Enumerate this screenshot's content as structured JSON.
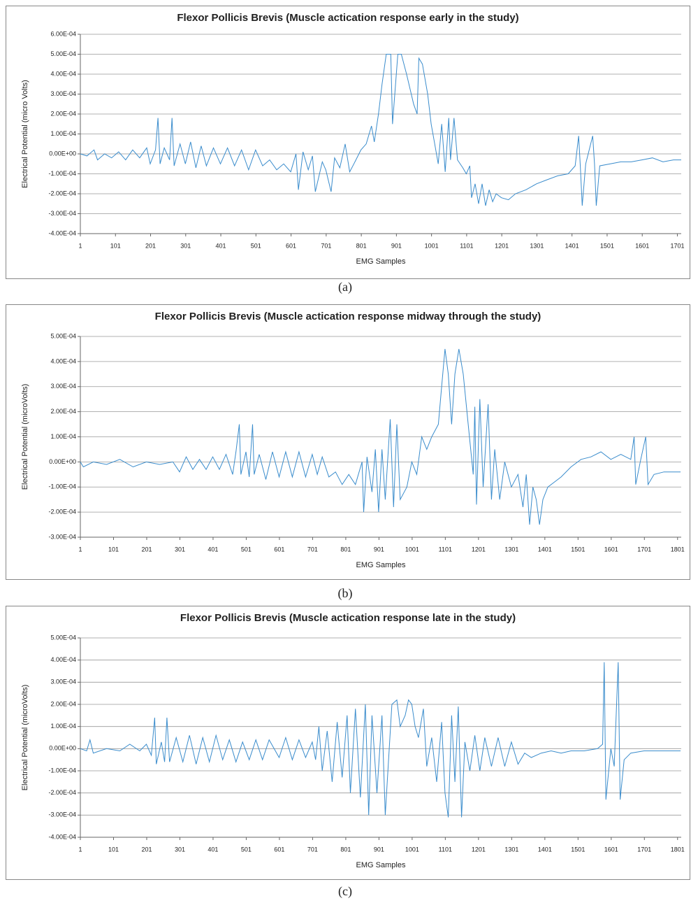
{
  "chart_data": [
    {
      "type": "line",
      "title": "Flexor Pollicis Brevis (Muscle actication response early in the study)",
      "caption": "(a)",
      "xlabel": "EMG Samples",
      "ylabel": "Electrical Potential (micro Volts)",
      "color": "#3a8ccc",
      "grid": true,
      "xlim": [
        1,
        1712
      ],
      "xticks": [
        1,
        101,
        201,
        301,
        401,
        501,
        601,
        701,
        801,
        901,
        1001,
        1101,
        1201,
        1301,
        1401,
        1501,
        1601,
        1701
      ],
      "ylim": [
        -0.0004,
        0.0006
      ],
      "yticks": [
        {
          "value": 0.0006,
          "label": "6.00E-04"
        },
        {
          "value": 0.0005,
          "label": "5.00E-04"
        },
        {
          "value": 0.0004,
          "label": "4.00E-04"
        },
        {
          "value": 0.0003,
          "label": "3.00E-04"
        },
        {
          "value": 0.0002,
          "label": "2.00E-04"
        },
        {
          "value": 0.0001,
          "label": "1.00E-04"
        },
        {
          "value": 0,
          "label": "0.00E+00"
        },
        {
          "value": -0.0001,
          "label": "-1.00E-04"
        },
        {
          "value": -0.0002,
          "label": "-2.00E-04"
        },
        {
          "value": -0.0003,
          "label": "-3.00E-04"
        },
        {
          "value": -0.0004,
          "label": "-4.00E-04"
        }
      ],
      "x": [
        1,
        20,
        40,
        50,
        70,
        90,
        110,
        130,
        150,
        170,
        190,
        200,
        215,
        222,
        228,
        240,
        255,
        262,
        268,
        285,
        300,
        315,
        330,
        345,
        360,
        380,
        400,
        420,
        440,
        460,
        480,
        500,
        520,
        540,
        560,
        580,
        600,
        615,
        622,
        635,
        650,
        662,
        670,
        690,
        700,
        715,
        725,
        740,
        755,
        768,
        780,
        800,
        815,
        830,
        838,
        850,
        860,
        872,
        885,
        890,
        905,
        915,
        930,
        950,
        960,
        965,
        975,
        990,
        1000,
        1010,
        1020,
        1030,
        1040,
        1050,
        1055,
        1065,
        1075,
        1090,
        1100,
        1110,
        1115,
        1125,
        1135,
        1145,
        1155,
        1165,
        1175,
        1185,
        1200,
        1220,
        1240,
        1270,
        1300,
        1330,
        1360,
        1390,
        1410,
        1420,
        1425,
        1430,
        1440,
        1460,
        1465,
        1470,
        1480,
        1510,
        1540,
        1570,
        1600,
        1630,
        1660,
        1690,
        1712
      ],
      "values": [
        0,
        -1e-05,
        2e-05,
        -3e-05,
        0,
        -2e-05,
        1e-05,
        -3e-05,
        2e-05,
        -2e-05,
        3e-05,
        -5e-05,
        2e-05,
        0.00018,
        -5e-05,
        3e-05,
        -3e-05,
        0.00018,
        -6e-05,
        5e-05,
        -5e-05,
        6e-05,
        -7e-05,
        4e-05,
        -6e-05,
        3e-05,
        -5e-05,
        3e-05,
        -6e-05,
        2e-05,
        -8e-05,
        2e-05,
        -6e-05,
        -3e-05,
        -8e-05,
        -5e-05,
        -9e-05,
        0,
        -0.00018,
        1e-05,
        -8e-05,
        -1e-05,
        -0.00019,
        -4e-05,
        -8e-05,
        -0.00019,
        -2e-05,
        -7e-05,
        5e-05,
        -9e-05,
        -5e-05,
        2e-05,
        5e-05,
        0.00014,
        6e-05,
        0.0002,
        0.00035,
        0.0005,
        0.0005,
        0.00015,
        0.0005,
        0.0005,
        0.0004,
        0.00025,
        0.0002,
        0.00048,
        0.00045,
        0.0003,
        0.00015,
        5e-05,
        -5e-05,
        0.00015,
        -9e-05,
        0.00018,
        -3e-05,
        0.00018,
        -3e-05,
        -7e-05,
        -0.0001,
        -6e-05,
        -0.00022,
        -0.00015,
        -0.00025,
        -0.00015,
        -0.00026,
        -0.00018,
        -0.00024,
        -0.0002,
        -0.00022,
        -0.00023,
        -0.0002,
        -0.00018,
        -0.00015,
        -0.00013,
        -0.00011,
        -0.0001,
        -6e-05,
        9e-05,
        -7e-05,
        -0.00026,
        -5e-05,
        9e-05,
        -5e-05,
        -0.00026,
        -6e-05,
        -5e-05,
        -4e-05,
        -4e-05,
        -3e-05,
        -2e-05,
        -4e-05,
        -3e-05,
        -3e-05
      ]
    },
    {
      "type": "line",
      "title": "Flexor Pollicis Brevis (Muscle actication response midway through the study)",
      "caption": "(b)",
      "xlabel": "EMG Samples",
      "ylabel": "Electrical Potential (microVolts)",
      "color": "#3a8ccc",
      "grid": true,
      "xlim": [
        1,
        1812
      ],
      "xticks": [
        1,
        101,
        201,
        301,
        401,
        501,
        601,
        701,
        801,
        901,
        1001,
        1101,
        1201,
        1301,
        1401,
        1501,
        1601,
        1701,
        1801
      ],
      "ylim": [
        -0.0003,
        0.0005
      ],
      "yticks": [
        {
          "value": 0.0005,
          "label": "5.00E-04"
        },
        {
          "value": 0.0004,
          "label": "4.00E-04"
        },
        {
          "value": 0.0003,
          "label": "3.00E-04"
        },
        {
          "value": 0.0002,
          "label": "2.00E-04"
        },
        {
          "value": 0.0001,
          "label": "1.00E-04"
        },
        {
          "value": 0,
          "label": "0.00E+00"
        },
        {
          "value": -0.0001,
          "label": "-1.00E-04"
        },
        {
          "value": -0.0002,
          "label": "-2.00E-04"
        },
        {
          "value": -0.0003,
          "label": "-3.00E-04"
        }
      ],
      "x": [
        1,
        10,
        40,
        80,
        120,
        160,
        200,
        240,
        280,
        300,
        320,
        340,
        360,
        380,
        400,
        420,
        440,
        460,
        470,
        480,
        485,
        500,
        510,
        520,
        525,
        540,
        560,
        580,
        600,
        620,
        640,
        660,
        680,
        700,
        715,
        730,
        750,
        770,
        790,
        810,
        830,
        850,
        855,
        865,
        880,
        890,
        900,
        910,
        920,
        935,
        945,
        955,
        965,
        985,
        1000,
        1015,
        1030,
        1045,
        1060,
        1080,
        1090,
        1100,
        1110,
        1120,
        1130,
        1142,
        1155,
        1170,
        1185,
        1190,
        1195,
        1205,
        1215,
        1230,
        1240,
        1250,
        1265,
        1280,
        1300,
        1320,
        1335,
        1345,
        1355,
        1365,
        1375,
        1385,
        1395,
        1410,
        1430,
        1450,
        1480,
        1510,
        1540,
        1570,
        1600,
        1630,
        1660,
        1670,
        1675,
        1690,
        1705,
        1712,
        1730,
        1760,
        1800,
        1810
      ],
      "values": [
        0,
        -2e-05,
        0,
        -1e-05,
        1e-05,
        -2e-05,
        0,
        -1e-05,
        0,
        -4e-05,
        2e-05,
        -3e-05,
        1e-05,
        -3e-05,
        2e-05,
        -3e-05,
        3e-05,
        -5e-05,
        4e-05,
        0.00015,
        -5e-05,
        4e-05,
        -6e-05,
        0.00015,
        -5e-05,
        3e-05,
        -7e-05,
        4e-05,
        -6e-05,
        4e-05,
        -6e-05,
        4e-05,
        -6e-05,
        3e-05,
        -5e-05,
        2e-05,
        -6e-05,
        -4e-05,
        -9e-05,
        -5e-05,
        -9e-05,
        0,
        -0.0002,
        2e-05,
        -0.00012,
        5e-05,
        -0.0002,
        5e-05,
        -0.00015,
        0.00017,
        -0.00018,
        0.00015,
        -0.00015,
        -0.0001,
        0,
        -5e-05,
        0.0001,
        5e-05,
        0.0001,
        0.00015,
        0.0003,
        0.00045,
        0.00035,
        0.00015,
        0.00035,
        0.00045,
        0.00035,
        0.00015,
        -5e-05,
        0.00022,
        -0.00017,
        0.00025,
        -0.0001,
        0.00023,
        -0.00015,
        5e-05,
        -0.00015,
        0,
        -0.0001,
        -5e-05,
        -0.00018,
        -5e-05,
        -0.00025,
        -0.0001,
        -0.00015,
        -0.00025,
        -0.00015,
        -0.0001,
        -8e-05,
        -6e-05,
        -2e-05,
        1e-05,
        2e-05,
        4e-05,
        1e-05,
        3e-05,
        1e-05,
        0.0001,
        -9e-05,
        1e-05,
        0.0001,
        -9e-05,
        -5e-05,
        -4e-05,
        -4e-05,
        -4e-05
      ]
    },
    {
      "type": "line",
      "title": "Flexor Pollicis Brevis (Muscle actication response late in the study)",
      "caption": "(c)",
      "xlabel": "EMG Samples",
      "ylabel": "Electrical Potential (microVolts)",
      "color": "#3a8ccc",
      "grid": true,
      "xlim": [
        1,
        1812
      ],
      "xticks": [
        1,
        101,
        201,
        301,
        401,
        501,
        601,
        701,
        801,
        901,
        1001,
        1101,
        1201,
        1301,
        1401,
        1501,
        1601,
        1701,
        1801
      ],
      "ylim": [
        -0.0004,
        0.0005
      ],
      "yticks": [
        {
          "value": 0.0005,
          "label": "5.00E-04"
        },
        {
          "value": 0.0004,
          "label": "4.00E-04"
        },
        {
          "value": 0.0003,
          "label": "3.00E-04"
        },
        {
          "value": 0.0002,
          "label": "2.00E-04"
        },
        {
          "value": 0.0001,
          "label": "1.00E-04"
        },
        {
          "value": 0,
          "label": "0.00E+00"
        },
        {
          "value": -0.0001,
          "label": "-1.00E-04"
        },
        {
          "value": -0.0002,
          "label": "-2.00E-04"
        },
        {
          "value": -0.0003,
          "label": "-3.00E-04"
        },
        {
          "value": -0.0004,
          "label": "-4.00E-04"
        }
      ],
      "x": [
        1,
        20,
        30,
        40,
        80,
        120,
        150,
        180,
        200,
        215,
        225,
        230,
        245,
        255,
        262,
        270,
        290,
        310,
        330,
        350,
        370,
        390,
        410,
        430,
        450,
        470,
        490,
        510,
        530,
        550,
        570,
        600,
        620,
        640,
        660,
        680,
        700,
        710,
        720,
        730,
        745,
        760,
        775,
        790,
        805,
        815,
        830,
        845,
        860,
        870,
        880,
        895,
        910,
        920,
        940,
        955,
        965,
        980,
        990,
        1000,
        1010,
        1020,
        1035,
        1045,
        1060,
        1075,
        1090,
        1100,
        1110,
        1120,
        1130,
        1140,
        1150,
        1160,
        1175,
        1190,
        1205,
        1220,
        1240,
        1260,
        1280,
        1300,
        1320,
        1340,
        1360,
        1390,
        1420,
        1450,
        1480,
        1520,
        1560,
        1575,
        1580,
        1585,
        1600,
        1610,
        1622,
        1628,
        1640,
        1660,
        1700,
        1750,
        1810
      ],
      "values": [
        0,
        -1e-05,
        4e-05,
        -2e-05,
        0,
        -1e-05,
        2e-05,
        -1e-05,
        2e-05,
        -3e-05,
        0.00014,
        -7e-05,
        3e-05,
        -6e-05,
        0.00014,
        -6e-05,
        5e-05,
        -6e-05,
        6e-05,
        -7e-05,
        5e-05,
        -6e-05,
        6e-05,
        -5e-05,
        4e-05,
        -6e-05,
        3e-05,
        -5e-05,
        4e-05,
        -5e-05,
        4e-05,
        -4e-05,
        5e-05,
        -5e-05,
        4e-05,
        -4e-05,
        3e-05,
        -5e-05,
        0.0001,
        -0.0001,
        8e-05,
        -0.00015,
        0.00012,
        -0.00013,
        0.00015,
        -0.0002,
        0.00018,
        -0.00022,
        0.0002,
        -0.0003,
        0.00015,
        -0.0002,
        0.00015,
        -0.0003,
        0.0002,
        0.00022,
        0.0001,
        0.00015,
        0.00022,
        0.0002,
        0.0001,
        5e-05,
        0.00018,
        -8e-05,
        5e-05,
        -0.00015,
        0.00012,
        -0.0002,
        -0.00031,
        0.00015,
        -0.00015,
        0.00019,
        -0.00031,
        3e-05,
        -0.0001,
        6e-05,
        -0.0001,
        5e-05,
        -8e-05,
        5e-05,
        -8e-05,
        3e-05,
        -7e-05,
        -2e-05,
        -4e-05,
        -2e-05,
        -1e-05,
        -2e-05,
        -1e-05,
        -1e-05,
        0,
        2e-05,
        0.00039,
        -0.00023,
        0,
        -8e-05,
        0.00039,
        -0.00023,
        -5e-05,
        -2e-05,
        -1e-05,
        -1e-05,
        -1e-05
      ]
    }
  ]
}
